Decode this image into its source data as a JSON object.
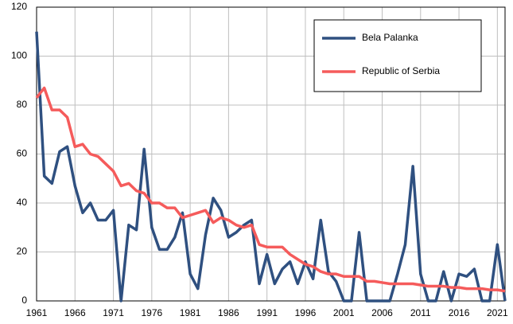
{
  "chart_data": {
    "type": "line",
    "x": [
      1961,
      1962,
      1963,
      1964,
      1965,
      1966,
      1967,
      1968,
      1969,
      1970,
      1971,
      1972,
      1973,
      1974,
      1975,
      1976,
      1977,
      1978,
      1979,
      1980,
      1981,
      1982,
      1983,
      1984,
      1985,
      1986,
      1987,
      1988,
      1989,
      1990,
      1991,
      1992,
      1993,
      1994,
      1995,
      1996,
      1997,
      1998,
      1999,
      2000,
      2001,
      2002,
      2003,
      2004,
      2005,
      2006,
      2007,
      2008,
      2009,
      2010,
      2011,
      2012,
      2013,
      2014,
      2015,
      2016,
      2017,
      2018,
      2019,
      2020,
      2021,
      2022
    ],
    "series": [
      {
        "name": "Bela Palanka",
        "color": "#2f5080",
        "values": [
          110,
          51,
          48,
          61,
          63,
          47,
          36,
          40,
          33,
          33,
          37,
          0,
          31,
          29,
          62,
          30,
          21,
          21,
          26,
          36,
          11,
          5,
          27,
          42,
          37,
          26,
          28,
          31,
          33,
          7,
          19,
          7,
          13,
          16,
          7,
          16,
          9,
          33,
          12,
          8,
          0,
          0,
          28,
          0,
          0,
          0,
          0,
          11,
          23,
          55,
          11,
          0,
          0,
          12,
          0,
          11,
          10,
          13,
          0,
          0,
          23,
          0
        ]
      },
      {
        "name": "Republic of Serbia",
        "color": "#f55b5b",
        "values": [
          83,
          87,
          78,
          78,
          75,
          63,
          64,
          60,
          59,
          56,
          53,
          47,
          48,
          45,
          44,
          40,
          40,
          38,
          38,
          34,
          35,
          36,
          37,
          32,
          34,
          33,
          31,
          30,
          31,
          23,
          22,
          22,
          22,
          19,
          17,
          15,
          14,
          12,
          11,
          11,
          10,
          10,
          10,
          8,
          8,
          7.5,
          7,
          7,
          7,
          7,
          6.5,
          6,
          6,
          6,
          5.5,
          5.5,
          5,
          5,
          5,
          4.5,
          4.5,
          4
        ]
      }
    ],
    "xlim": [
      1961,
      2022
    ],
    "xticks": [
      1961,
      1966,
      1971,
      1976,
      1981,
      1986,
      1991,
      1996,
      2001,
      2006,
      2011,
      2016,
      2021
    ],
    "ylim": [
      0,
      120
    ],
    "yticks": [
      0,
      20,
      40,
      60,
      80,
      100,
      120
    ],
    "grid": true,
    "legend": "upper right"
  }
}
